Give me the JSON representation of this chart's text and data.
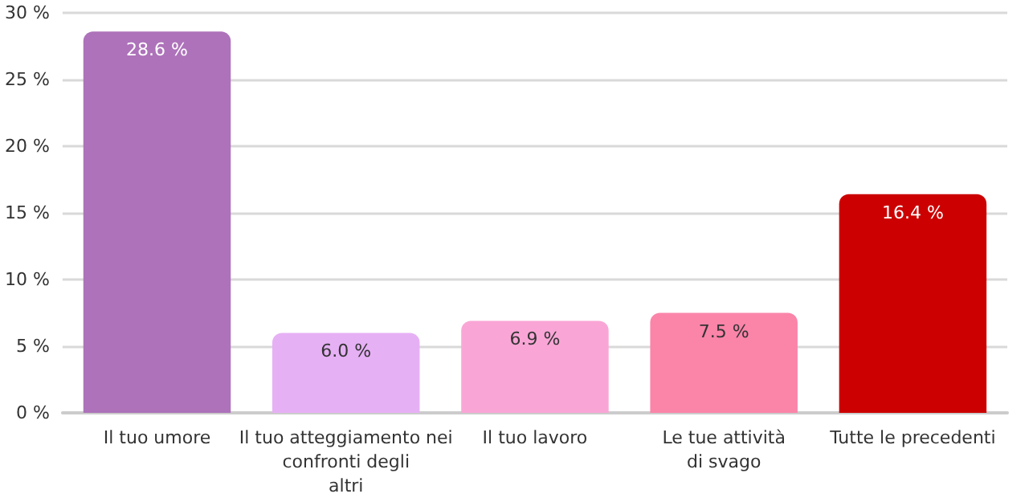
{
  "chart_data": {
    "type": "bar",
    "categories": [
      "Il tuo umore",
      "Il tuo atteggiamento nei\nconfronti degli\naltri",
      "Il tuo lavoro",
      "Le tue attività\ndi svago",
      "Tutte le precedenti"
    ],
    "values": [
      28.6,
      6.0,
      6.9,
      7.5,
      16.4
    ],
    "value_labels": [
      "28.6 %",
      "6.0 %",
      "6.9 %",
      "7.5 %",
      "16.4 %"
    ],
    "colors": [
      "#ad72ba",
      "#e6b0f5",
      "#f9a6d6",
      "#fb84a9",
      "#cc0000"
    ],
    "ylim": [
      0,
      30
    ],
    "yticks": [
      {
        "value": 0,
        "label": "0 %"
      },
      {
        "value": 5,
        "label": "5 %"
      },
      {
        "value": 10,
        "label": "10 %"
      },
      {
        "value": 15,
        "label": "15 %"
      },
      {
        "value": 20,
        "label": "20 %"
      },
      {
        "value": 25,
        "label": "25 %"
      },
      {
        "value": 30,
        "label": "30 %"
      }
    ],
    "grid": "y"
  }
}
